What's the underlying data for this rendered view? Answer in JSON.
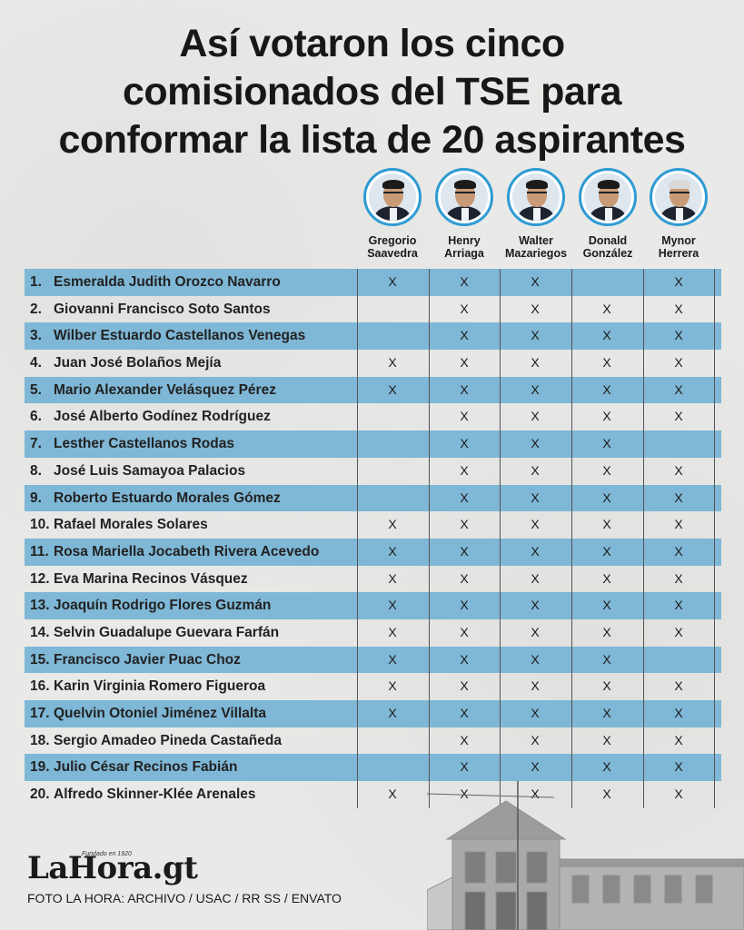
{
  "title_lines": [
    "Así votaron los cinco",
    "comisionados del TSE para",
    "conformar la lista de 20 aspirantes"
  ],
  "commissioners": [
    {
      "first": "Gregorio",
      "last": "Saavedra",
      "hair": "dark"
    },
    {
      "first": "Henry",
      "last": "Arriaga",
      "hair": "dark"
    },
    {
      "first": "Walter",
      "last": "Mazariegos",
      "hair": "dark"
    },
    {
      "first": "Donald",
      "last": "González",
      "hair": "dark"
    },
    {
      "first": "Mynor",
      "last": "Herrera",
      "hair": "gray"
    }
  ],
  "mark": "X",
  "rows": [
    {
      "num": "1.",
      "name": "Esmeralda Judith Orozco Navarro",
      "votes": [
        true,
        true,
        true,
        false,
        true
      ]
    },
    {
      "num": "2.",
      "name": "Giovanni Francisco Soto Santos",
      "votes": [
        false,
        true,
        true,
        true,
        true
      ]
    },
    {
      "num": "3.",
      "name": "Wilber Estuardo Castellanos Venegas",
      "votes": [
        false,
        true,
        true,
        true,
        true
      ]
    },
    {
      "num": "4.",
      "name": "Juan José Bolaños Mejía",
      "votes": [
        true,
        true,
        true,
        true,
        true
      ]
    },
    {
      "num": "5.",
      "name": "Mario Alexander Velásquez Pérez",
      "votes": [
        true,
        true,
        true,
        true,
        true
      ]
    },
    {
      "num": "6.",
      "name": "José Alberto Godínez Rodríguez",
      "votes": [
        false,
        true,
        true,
        true,
        true
      ]
    },
    {
      "num": "7.",
      "name": "Lesther Castellanos Rodas",
      "votes": [
        false,
        true,
        true,
        true,
        false
      ]
    },
    {
      "num": "8.",
      "name": "José Luis Samayoa Palacios",
      "votes": [
        false,
        true,
        true,
        true,
        true
      ]
    },
    {
      "num": "9.",
      "name": "Roberto Estuardo Morales Gómez",
      "votes": [
        false,
        true,
        true,
        true,
        true
      ]
    },
    {
      "num": "10.",
      "name": "Rafael Morales Solares",
      "votes": [
        true,
        true,
        true,
        true,
        true
      ]
    },
    {
      "num": "11.",
      "name": "Rosa Mariella Jocabeth Rivera Acevedo",
      "votes": [
        true,
        true,
        true,
        true,
        true
      ]
    },
    {
      "num": "12.",
      "name": "Eva Marina Recinos Vásquez",
      "votes": [
        true,
        true,
        true,
        true,
        true
      ]
    },
    {
      "num": "13.",
      "name": "Joaquín Rodrigo Flores Guzmán",
      "votes": [
        true,
        true,
        true,
        true,
        true
      ]
    },
    {
      "num": "14.",
      "name": "Selvin Guadalupe Guevara Farfán",
      "votes": [
        true,
        true,
        true,
        true,
        true
      ]
    },
    {
      "num": "15.",
      "name": "Francisco Javier Puac Choz",
      "votes": [
        true,
        true,
        true,
        true,
        false
      ]
    },
    {
      "num": "16.",
      "name": "Karin Virginia Romero Figueroa",
      "votes": [
        true,
        true,
        true,
        true,
        true
      ]
    },
    {
      "num": "17.",
      "name": "Quelvin Otoniel Jiménez Villalta",
      "votes": [
        true,
        true,
        true,
        true,
        true
      ]
    },
    {
      "num": "18.",
      "name": "Sergio Amadeo Pineda Castañeda",
      "votes": [
        false,
        true,
        true,
        true,
        true
      ]
    },
    {
      "num": "19.",
      "name": "Julio César Recinos Fabián",
      "votes": [
        false,
        true,
        true,
        true,
        true
      ]
    },
    {
      "num": "20.",
      "name": "Alfredo Skinner-Klée Arenales",
      "votes": [
        true,
        true,
        true,
        true,
        true
      ]
    }
  ],
  "logo": {
    "text": "LaHora.gt",
    "tagline": "Fundado en 1920"
  },
  "credit": "FOTO LA HORA:  ARCHIVO / USAC / RR SS / ENVATO",
  "colors": {
    "stripe": "#7fb7d6",
    "avatar_ring": "#2e9bd3",
    "background": "#e9e9e7"
  }
}
